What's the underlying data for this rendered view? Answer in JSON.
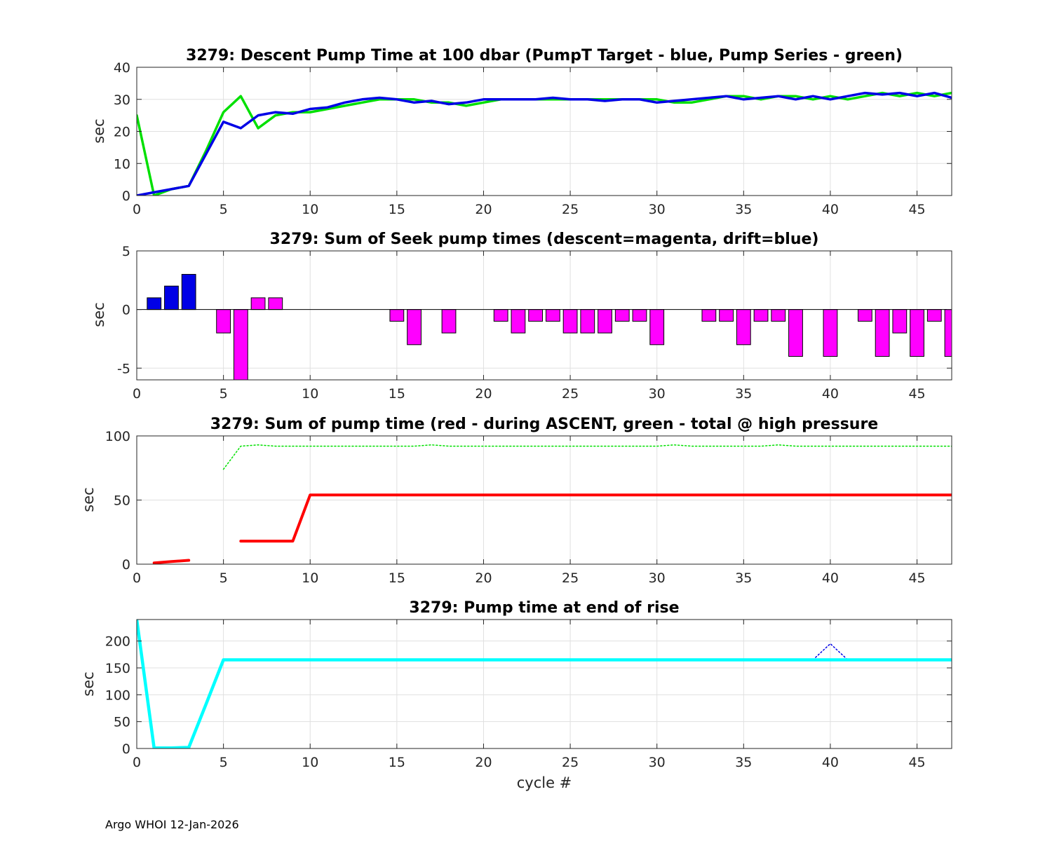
{
  "footer": "Argo WHOI 12-Jan-2026",
  "colors": {
    "green": "#00e000",
    "blue": "#0000e6",
    "magenta": "#ff00ff",
    "red": "#ff0000",
    "cyan": "#00ffff",
    "grid": "#e0e0e0",
    "axis": "#262626"
  },
  "chart_data": [
    {
      "type": "line",
      "title": "3279: Descent Pump Time at 100 dbar (PumpT Target - blue, Pump Series - green)",
      "xlabel": "",
      "ylabel": "sec",
      "xlim": [
        0,
        47
      ],
      "ylim": [
        0,
        40
      ],
      "xticks": [
        0,
        5,
        10,
        15,
        20,
        25,
        30,
        35,
        40,
        45
      ],
      "yticks": [
        0,
        10,
        20,
        30,
        40
      ],
      "grid": true,
      "series": [
        {
          "color": "green",
          "width": 3.5,
          "dash": "",
          "x": [
            0,
            1,
            2,
            3,
            4,
            5,
            6,
            7,
            8,
            9,
            10,
            11,
            12,
            13,
            14,
            15,
            16,
            17,
            18,
            19,
            20,
            21,
            22,
            23,
            24,
            25,
            26,
            27,
            28,
            29,
            30,
            31,
            32,
            33,
            34,
            35,
            36,
            37,
            38,
            39,
            40,
            41,
            42,
            43,
            44,
            45,
            46,
            47
          ],
          "y": [
            25,
            0,
            2,
            3,
            14,
            26,
            31,
            21,
            25,
            26,
            26,
            27,
            28,
            29,
            30,
            30,
            30,
            29,
            29,
            28,
            29,
            30,
            30,
            30,
            30,
            30,
            30,
            30,
            30,
            30,
            30,
            29,
            29,
            30,
            31,
            31,
            30,
            31,
            31,
            30,
            31,
            30,
            31,
            32,
            31,
            32,
            31,
            32
          ]
        },
        {
          "color": "blue",
          "width": 3.5,
          "dash": "",
          "x": [
            0,
            1,
            2,
            3,
            4,
            5,
            6,
            7,
            8,
            9,
            10,
            11,
            12,
            13,
            14,
            15,
            16,
            17,
            18,
            19,
            20,
            21,
            22,
            23,
            24,
            25,
            26,
            27,
            28,
            29,
            30,
            31,
            32,
            33,
            34,
            35,
            36,
            37,
            38,
            39,
            40,
            41,
            42,
            43,
            44,
            45,
            46,
            47
          ],
          "y": [
            0,
            1,
            2,
            3,
            13,
            23,
            21,
            25,
            26,
            25.5,
            27,
            27.5,
            29,
            30,
            30.5,
            30,
            29,
            29.5,
            28.5,
            29,
            30,
            30,
            30,
            30,
            30.5,
            30,
            30,
            29.5,
            30,
            30,
            29,
            29.5,
            30,
            30.5,
            31,
            30,
            30.5,
            31,
            30,
            31,
            30,
            31,
            32,
            31.5,
            32,
            31,
            32,
            30.5
          ]
        }
      ]
    },
    {
      "type": "bar",
      "title": "3279: Sum of Seek pump times (descent=magenta, drift=blue)",
      "xlabel": "",
      "ylabel": "sec",
      "xlim": [
        0,
        47
      ],
      "ylim": [
        -6,
        5
      ],
      "xticks": [
        0,
        5,
        10,
        15,
        20,
        25,
        30,
        35,
        40,
        45
      ],
      "yticks": [
        -5,
        0,
        5
      ],
      "grid": true,
      "bars": [
        {
          "x": 1,
          "value": 1,
          "color": "blue"
        },
        {
          "x": 2,
          "value": 2,
          "color": "blue"
        },
        {
          "x": 3,
          "value": 3,
          "color": "blue"
        },
        {
          "x": 5,
          "value": -2,
          "color": "magenta"
        },
        {
          "x": 6,
          "value": -6,
          "color": "magenta"
        },
        {
          "x": 7,
          "value": 1,
          "color": "magenta"
        },
        {
          "x": 8,
          "value": 1,
          "color": "magenta"
        },
        {
          "x": 15,
          "value": -1,
          "color": "magenta"
        },
        {
          "x": 16,
          "value": -3,
          "color": "magenta"
        },
        {
          "x": 18,
          "value": -2,
          "color": "magenta"
        },
        {
          "x": 21,
          "value": -1,
          "color": "magenta"
        },
        {
          "x": 22,
          "value": -2,
          "color": "magenta"
        },
        {
          "x": 23,
          "value": -1,
          "color": "magenta"
        },
        {
          "x": 24,
          "value": -1,
          "color": "magenta"
        },
        {
          "x": 25,
          "value": -2,
          "color": "magenta"
        },
        {
          "x": 26,
          "value": -2,
          "color": "magenta"
        },
        {
          "x": 27,
          "value": -2,
          "color": "magenta"
        },
        {
          "x": 28,
          "value": -1,
          "color": "magenta"
        },
        {
          "x": 29,
          "value": -1,
          "color": "magenta"
        },
        {
          "x": 30,
          "value": -3,
          "color": "magenta"
        },
        {
          "x": 33,
          "value": -1,
          "color": "magenta"
        },
        {
          "x": 34,
          "value": -1,
          "color": "magenta"
        },
        {
          "x": 35,
          "value": -3,
          "color": "magenta"
        },
        {
          "x": 36,
          "value": -1,
          "color": "magenta"
        },
        {
          "x": 37,
          "value": -1,
          "color": "magenta"
        },
        {
          "x": 38,
          "value": -4,
          "color": "magenta"
        },
        {
          "x": 40,
          "value": -4,
          "color": "magenta"
        },
        {
          "x": 42,
          "value": -1,
          "color": "magenta"
        },
        {
          "x": 43,
          "value": -4,
          "color": "magenta"
        },
        {
          "x": 44,
          "value": -2,
          "color": "magenta"
        },
        {
          "x": 45,
          "value": -4,
          "color": "magenta"
        },
        {
          "x": 46,
          "value": -1,
          "color": "magenta"
        },
        {
          "x": 47,
          "value": -4,
          "color": "magenta"
        }
      ]
    },
    {
      "type": "line",
      "title": "3279: Sum of pump time (red - during ASCENT, green - total @ high pressure",
      "xlabel": "",
      "ylabel": "sec",
      "xlim": [
        0,
        47
      ],
      "ylim": [
        0,
        100
      ],
      "xticks": [
        0,
        5,
        10,
        15,
        20,
        25,
        30,
        35,
        40,
        45
      ],
      "yticks": [
        0,
        50,
        100
      ],
      "grid": true,
      "series": [
        {
          "color": "red",
          "width": 4,
          "dash": "",
          "x": [
            1,
            2,
            3
          ],
          "y": [
            1,
            2,
            3
          ]
        },
        {
          "color": "red",
          "width": 4,
          "dash": "",
          "x": [
            6,
            7,
            8,
            9,
            10,
            11,
            12,
            13,
            14,
            15,
            16,
            17,
            18,
            19,
            20,
            21,
            22,
            23,
            24,
            25,
            26,
            27,
            28,
            29,
            30,
            31,
            32,
            33,
            34,
            35,
            36,
            37,
            38,
            39,
            40,
            41,
            42,
            43,
            44,
            45,
            46,
            47
          ],
          "y": [
            18,
            18,
            18,
            18,
            54,
            54,
            54,
            54,
            54,
            54,
            54,
            54,
            54,
            54,
            54,
            54,
            54,
            54,
            54,
            54,
            54,
            54,
            54,
            54,
            54,
            54,
            54,
            54,
            54,
            54,
            54,
            54,
            54,
            54,
            54,
            54,
            54,
            54,
            54,
            54,
            54,
            54
          ]
        },
        {
          "color": "green",
          "width": 1.5,
          "dash": "2,3",
          "x": [
            5,
            6,
            7,
            8,
            9,
            10,
            11,
            12,
            13,
            14,
            15,
            16,
            17,
            18,
            19,
            20,
            21,
            22,
            23,
            24,
            25,
            26,
            27,
            28,
            29,
            30,
            31,
            32,
            33,
            34,
            35,
            36,
            37,
            38,
            39,
            40,
            41,
            42,
            43,
            44,
            45,
            46,
            47
          ],
          "y": [
            74,
            92,
            93,
            92,
            92,
            92,
            92,
            92,
            92,
            92,
            92,
            92,
            93,
            92,
            92,
            92,
            92,
            92,
            92,
            92,
            92,
            92,
            92,
            92,
            92,
            92,
            93,
            92,
            92,
            92,
            92,
            92,
            93,
            92,
            92,
            92,
            92,
            92,
            92,
            92,
            92,
            92,
            92
          ]
        }
      ]
    },
    {
      "type": "line",
      "title": "3279: Pump time at end of rise",
      "xlabel": "cycle #",
      "ylabel": "sec",
      "xlim": [
        0,
        47
      ],
      "ylim": [
        0,
        240
      ],
      "xticks": [
        0,
        5,
        10,
        15,
        20,
        25,
        30,
        35,
        40,
        45
      ],
      "yticks": [
        0,
        50,
        100,
        150,
        200
      ],
      "grid": true,
      "series": [
        {
          "color": "blue",
          "width": 1.5,
          "dash": "2,3",
          "x": [
            39,
            40,
            41
          ],
          "y": [
            165,
            195,
            165
          ]
        },
        {
          "color": "cyan",
          "width": 4.5,
          "dash": "",
          "x": [
            0,
            1,
            2,
            3,
            4,
            5,
            6,
            7,
            8,
            9,
            10,
            11,
            12,
            13,
            14,
            15,
            16,
            17,
            18,
            19,
            20,
            21,
            22,
            23,
            24,
            25,
            26,
            27,
            28,
            29,
            30,
            31,
            32,
            33,
            34,
            35,
            36,
            37,
            38,
            39,
            40,
            41,
            42,
            43,
            44,
            45,
            46,
            47
          ],
          "y": [
            240,
            1,
            1,
            2,
            83,
            165,
            165,
            165,
            165,
            165,
            165,
            165,
            165,
            165,
            165,
            165,
            165,
            165,
            165,
            165,
            165,
            165,
            165,
            165,
            165,
            165,
            165,
            165,
            165,
            165,
            165,
            165,
            165,
            165,
            165,
            165,
            165,
            165,
            165,
            165,
            165,
            165,
            165,
            165,
            165,
            165,
            165,
            165
          ]
        }
      ]
    }
  ]
}
